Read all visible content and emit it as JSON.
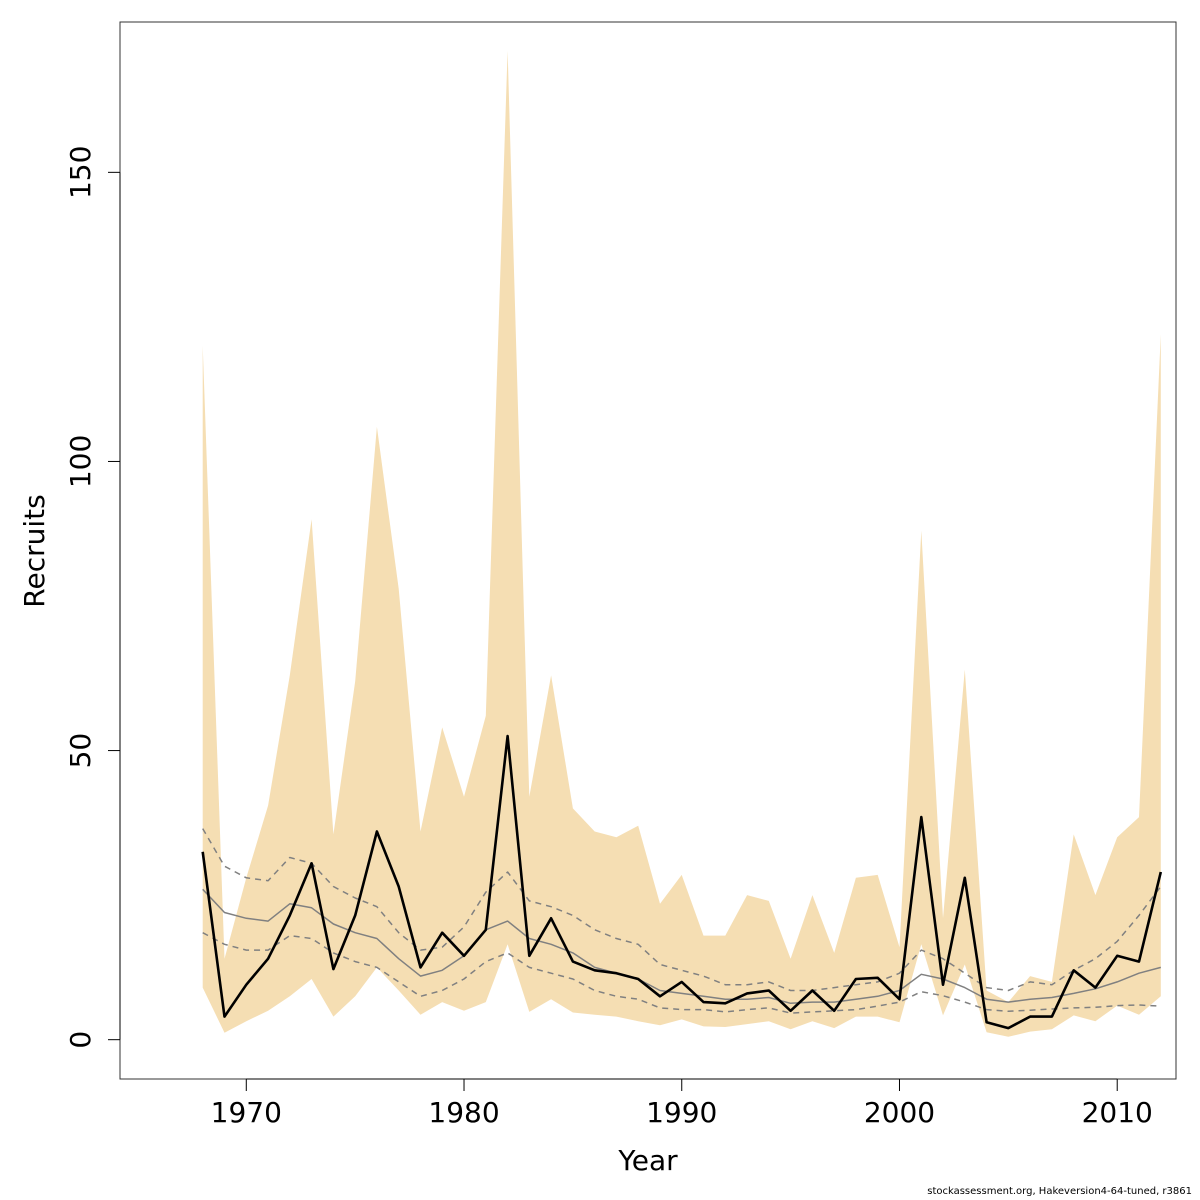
{
  "chart_data": {
    "type": "line",
    "xlabel": "Year",
    "ylabel": "Recruits",
    "xlim": [
      1964.2,
      2012.7
    ],
    "ylim": [
      -6.8,
      176
    ],
    "xticks": [
      1970,
      1980,
      1990,
      2000,
      2010
    ],
    "yticks": [
      0,
      50,
      100,
      150
    ],
    "grid": false,
    "colors": {
      "band": "#f5deb3",
      "main": "#000000",
      "mean": "#808080",
      "quantile": "#808080",
      "frame": "#333333"
    },
    "x": [
      1968,
      1969,
      1970,
      1971,
      1972,
      1973,
      1974,
      1975,
      1976,
      1977,
      1978,
      1979,
      1980,
      1981,
      1982,
      1983,
      1984,
      1985,
      1986,
      1987,
      1988,
      1989,
      1990,
      1991,
      1992,
      1993,
      1994,
      1995,
      1996,
      1997,
      1998,
      1999,
      2000,
      2001,
      2002,
      2003,
      2004,
      2005,
      2006,
      2007,
      2008,
      2009,
      2010,
      2011,
      2012
    ],
    "series": [
      {
        "role": "band",
        "lower": [
          9,
          1.2,
          3.2,
          5,
          7.5,
          10.5,
          4,
          7.5,
          12.5,
          8.5,
          4.3,
          6.5,
          5,
          6.5,
          16.5,
          4.8,
          7,
          4.7,
          4.3,
          4,
          3.2,
          2.5,
          3.5,
          2.3,
          2.2,
          2.7,
          3.2,
          1.8,
          3.2,
          2,
          4,
          4,
          3,
          16.5,
          4.2,
          13,
          1.3,
          0.5,
          1.4,
          1.8,
          4.2,
          3.2,
          5.9,
          4.3,
          7.5
        ],
        "upper": [
          120,
          14,
          28,
          40.5,
          63,
          90,
          35.5,
          62,
          106,
          78,
          36,
          54,
          42,
          56,
          171,
          42,
          63,
          40,
          36,
          35,
          37,
          23.5,
          28.5,
          18,
          18,
          25,
          24,
          14,
          25,
          15,
          28,
          28.5,
          16,
          88,
          21,
          64,
          8.5,
          6.5,
          11,
          10,
          35.5,
          25,
          35,
          38.5,
          122
        ]
      },
      {
        "role": "quantile",
        "name": "upper-quantile",
        "values": [
          36.5,
          30,
          28,
          27.5,
          31.5,
          30.5,
          26.5,
          24.5,
          23,
          18.5,
          15.5,
          16,
          19.5,
          25.5,
          29,
          24,
          23,
          21.5,
          19,
          17.5,
          16.5,
          13,
          12,
          11,
          9.5,
          9.5,
          10,
          8.5,
          8.5,
          9,
          9.5,
          10,
          11.5,
          15.5,
          14,
          11.5,
          9,
          8.5,
          10,
          9.5,
          12,
          14,
          17,
          21.5,
          26.5
        ]
      },
      {
        "role": "quantile",
        "name": "lower-quantile",
        "values": [
          18.5,
          16.5,
          15.5,
          15.5,
          18,
          17.5,
          15,
          13.5,
          12.5,
          10,
          7.5,
          8.5,
          10.5,
          13.5,
          15,
          12.5,
          11.5,
          10.5,
          8.5,
          7.5,
          7,
          5.5,
          5.2,
          5.2,
          4.8,
          5.2,
          5.5,
          4.6,
          4.8,
          5,
          5.2,
          5.8,
          6.5,
          8.3,
          7.6,
          6.5,
          5.2,
          4.9,
          5.1,
          5.3,
          5.5,
          5.6,
          5.9,
          6,
          5.8
        ]
      },
      {
        "role": "mean",
        "name": "mean",
        "values": [
          26,
          22,
          21,
          20.5,
          23.5,
          22.8,
          20,
          18.5,
          17.5,
          14,
          11,
          12,
          14.5,
          19,
          20.5,
          17.5,
          16.5,
          15,
          12.5,
          11.5,
          10.5,
          8.5,
          8,
          7.5,
          7,
          7,
          7.3,
          6.3,
          6.5,
          6.5,
          7,
          7.5,
          8.5,
          11.3,
          10.5,
          9,
          7,
          6.5,
          7,
          7.3,
          8,
          8.8,
          10,
          11.5,
          12.5
        ]
      },
      {
        "role": "main",
        "name": "main",
        "values": [
          32.5,
          4,
          9.5,
          14,
          21.5,
          30.5,
          12.2,
          21.5,
          36,
          26.5,
          12.5,
          18.5,
          14.5,
          19,
          52.5,
          14.5,
          21,
          13.5,
          12,
          11.5,
          10.5,
          7.5,
          10,
          6.5,
          6.3,
          8,
          8.5,
          5,
          8.5,
          5,
          10.5,
          10.7,
          7,
          38.5,
          9.5,
          28,
          3,
          2,
          4,
          4,
          12,
          9,
          14.5,
          13.5,
          29
        ]
      }
    ]
  },
  "footer": {
    "credit": "stockassessment.org, Hakeversion4-64-tuned, r3861"
  }
}
